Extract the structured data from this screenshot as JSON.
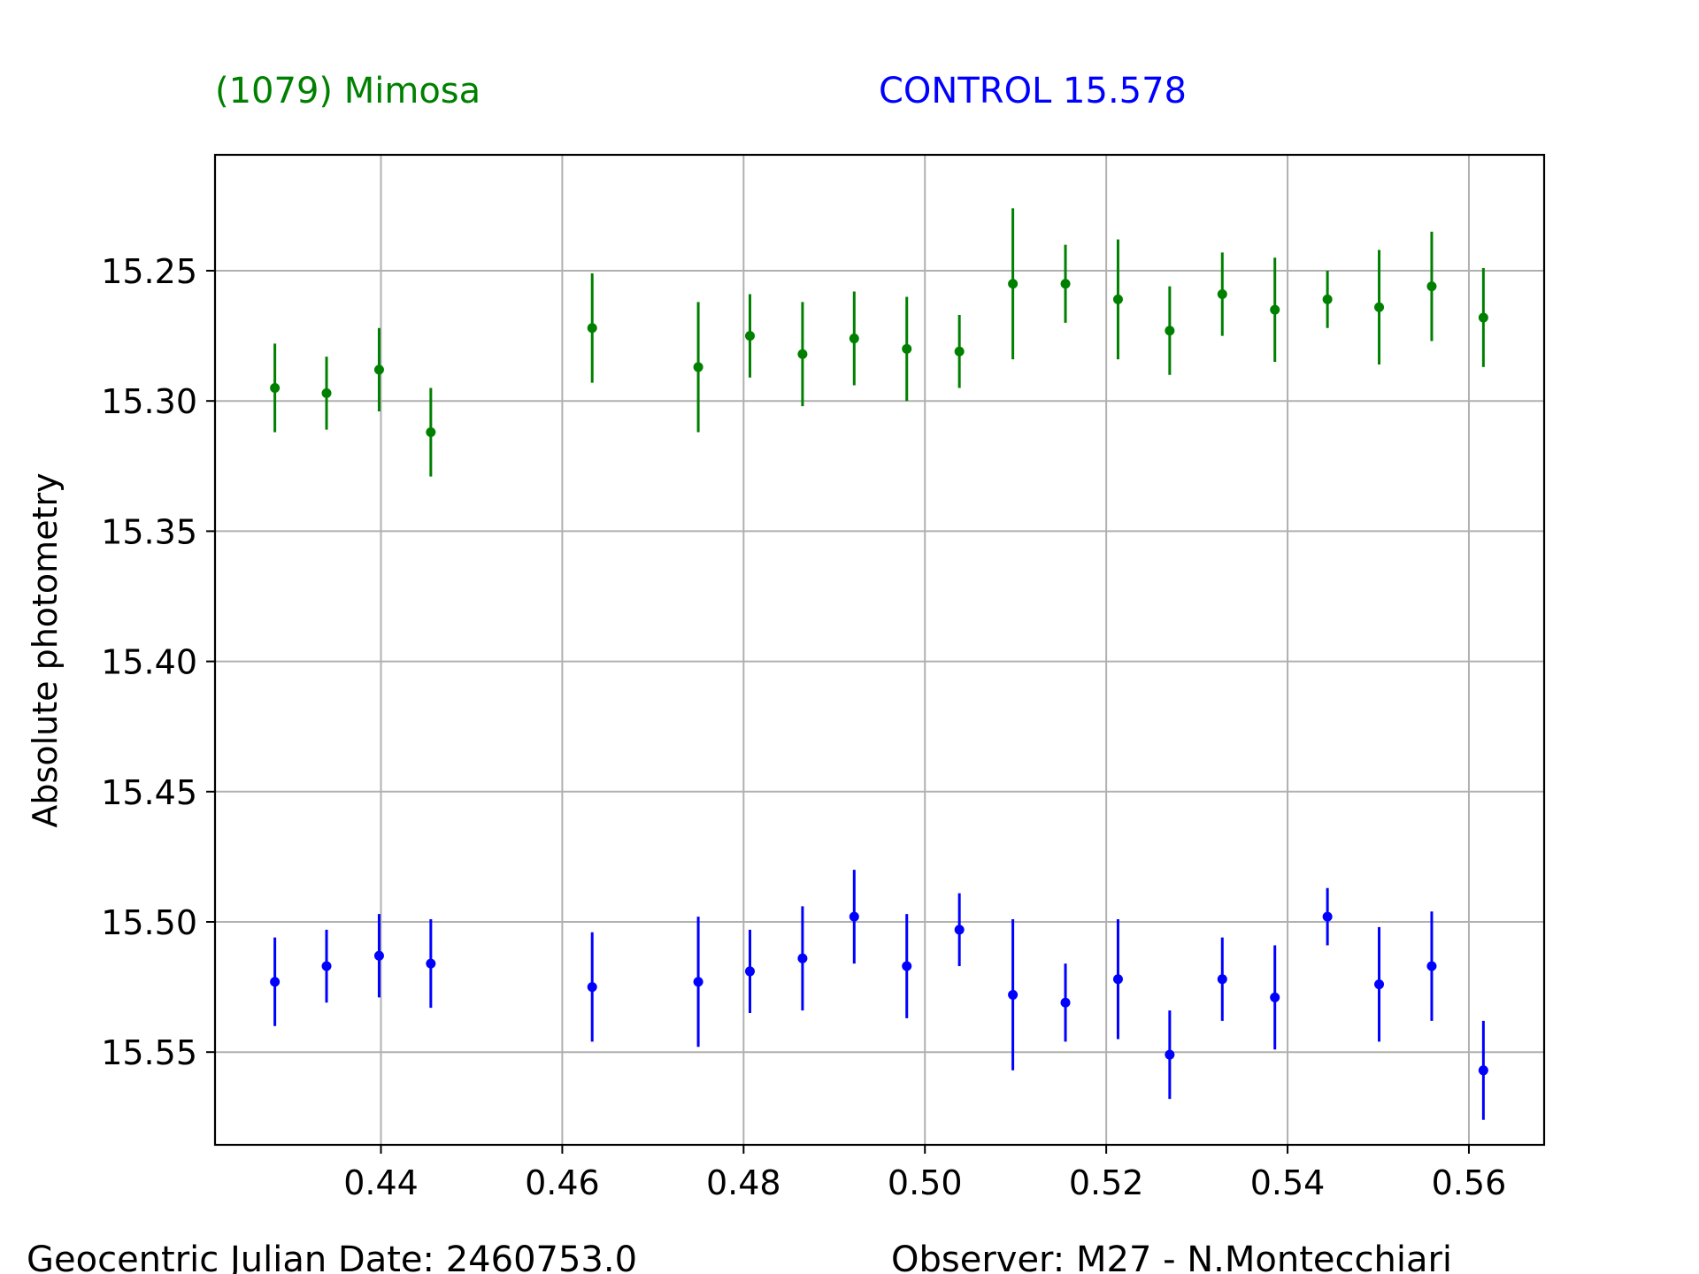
{
  "chart_data": {
    "type": "scatter",
    "title": "",
    "xlabel": "",
    "ylabel": "Absolute photometry",
    "xlim": [
      0.4217,
      0.5683
    ],
    "ylim": [
      15.5856,
      15.2055
    ],
    "y_inverted": true,
    "grid": true,
    "x_ticks": [
      0.44,
      0.46,
      0.48,
      0.5,
      0.52,
      0.54,
      0.56
    ],
    "x_tick_labels": [
      "0.44",
      "0.46",
      "0.48",
      "0.50",
      "0.52",
      "0.54",
      "0.56"
    ],
    "y_ticks": [
      15.25,
      15.3,
      15.35,
      15.4,
      15.45,
      15.5,
      15.55
    ],
    "y_tick_labels": [
      "15.25",
      "15.30",
      "15.35",
      "15.40",
      "15.45",
      "15.50",
      "15.55"
    ],
    "series": [
      {
        "name": "(1079) Mimosa",
        "color": "#008000",
        "x": [
          0.4283,
          0.434,
          0.4398,
          0.4455,
          0.4633,
          0.475,
          0.4807,
          0.4865,
          0.4922,
          0.498,
          0.5038,
          0.5097,
          0.5155,
          0.5213,
          0.527,
          0.5328,
          0.5386,
          0.5444,
          0.5501,
          0.5559,
          0.5616
        ],
        "y": [
          15.295,
          15.297,
          15.288,
          15.312,
          15.272,
          15.287,
          15.275,
          15.282,
          15.276,
          15.28,
          15.281,
          15.255,
          15.255,
          15.261,
          15.273,
          15.259,
          15.265,
          15.261,
          15.264,
          15.256,
          15.268
        ],
        "err": [
          0.017,
          0.014,
          0.016,
          0.017,
          0.021,
          0.025,
          0.016,
          0.02,
          0.018,
          0.02,
          0.014,
          0.029,
          0.015,
          0.023,
          0.017,
          0.016,
          0.02,
          0.011,
          0.022,
          0.021,
          0.019
        ]
      },
      {
        "name": "CONTROL 15.578",
        "color": "#0000ff",
        "x": [
          0.4283,
          0.434,
          0.4398,
          0.4455,
          0.4633,
          0.475,
          0.4807,
          0.4865,
          0.4922,
          0.498,
          0.5038,
          0.5097,
          0.5155,
          0.5213,
          0.527,
          0.5328,
          0.5386,
          0.5444,
          0.5501,
          0.5559,
          0.5616
        ],
        "y": [
          15.523,
          15.517,
          15.513,
          15.516,
          15.525,
          15.523,
          15.519,
          15.514,
          15.498,
          15.517,
          15.503,
          15.528,
          15.531,
          15.522,
          15.551,
          15.522,
          15.529,
          15.498,
          15.524,
          15.517,
          15.557
        ],
        "err": [
          0.017,
          0.014,
          0.016,
          0.017,
          0.021,
          0.025,
          0.016,
          0.02,
          0.018,
          0.02,
          0.014,
          0.029,
          0.015,
          0.023,
          0.017,
          0.016,
          0.02,
          0.011,
          0.022,
          0.021,
          0.019
        ]
      }
    ],
    "annotations": {
      "target_label": "(1079) Mimosa",
      "control_label": "CONTROL 15.578",
      "date_label": "Geocentric Julian Date: 2460753.0",
      "observer_label": "Observer: M27 - N.Montecchiari"
    }
  }
}
